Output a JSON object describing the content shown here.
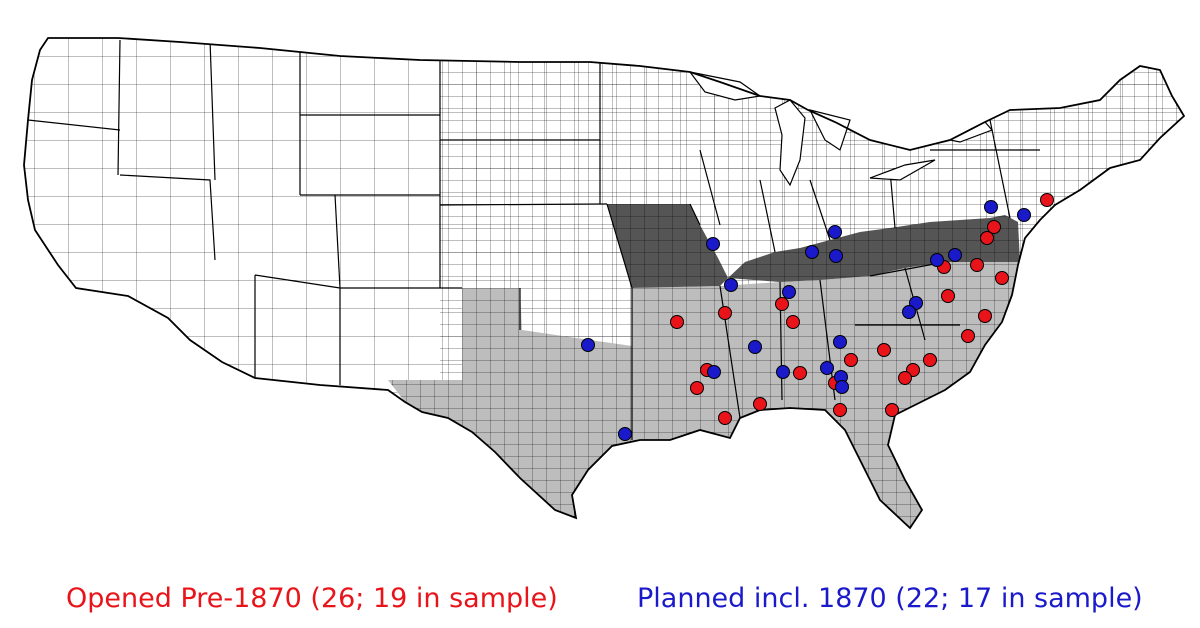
{
  "legend": {
    "opened": {
      "label": "Opened Pre-1870 (26; 19 in sample)",
      "color": "#e8141a"
    },
    "planned": {
      "label": "Planned incl. 1870 (22; 17 in sample)",
      "color": "#1a1acb"
    }
  },
  "colors": {
    "north_states": "#ffffff",
    "border_states": "#555555",
    "confederate_states": "#bdbdbd",
    "county_lines": "#000000"
  }
}
